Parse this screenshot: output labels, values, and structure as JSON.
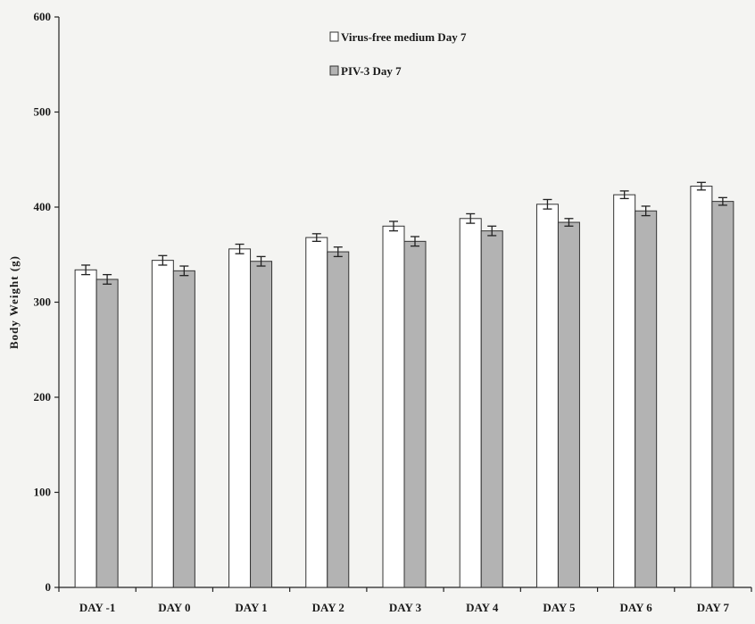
{
  "chart_data": {
    "type": "bar",
    "categories": [
      "DAY -1",
      "DAY 0",
      "DAY 1",
      "DAY 2",
      "DAY 3",
      "DAY 4",
      "DAY 5",
      "DAY 6",
      "DAY 7"
    ],
    "series": [
      {
        "name": "Virus-free medium Day 7",
        "color": "#ffffff",
        "values": [
          334,
          344,
          356,
          368,
          380,
          388,
          403,
          413,
          422
        ],
        "errors": [
          5,
          5,
          5,
          4,
          5,
          5,
          5,
          4,
          4
        ]
      },
      {
        "name": "PIV-3 Day 7",
        "color": "#b3b3b3",
        "values": [
          324,
          333,
          343,
          353,
          364,
          375,
          384,
          396,
          406
        ],
        "errors": [
          5,
          5,
          5,
          5,
          5,
          5,
          4,
          5,
          4
        ]
      }
    ],
    "title": "",
    "xlabel": "",
    "ylabel": "Body Weight (g)",
    "ylim": [
      0,
      600
    ],
    "yticks": [
      0,
      100,
      200,
      300,
      400,
      500,
      600
    ],
    "legend_position": "top-center",
    "grid": false
  }
}
